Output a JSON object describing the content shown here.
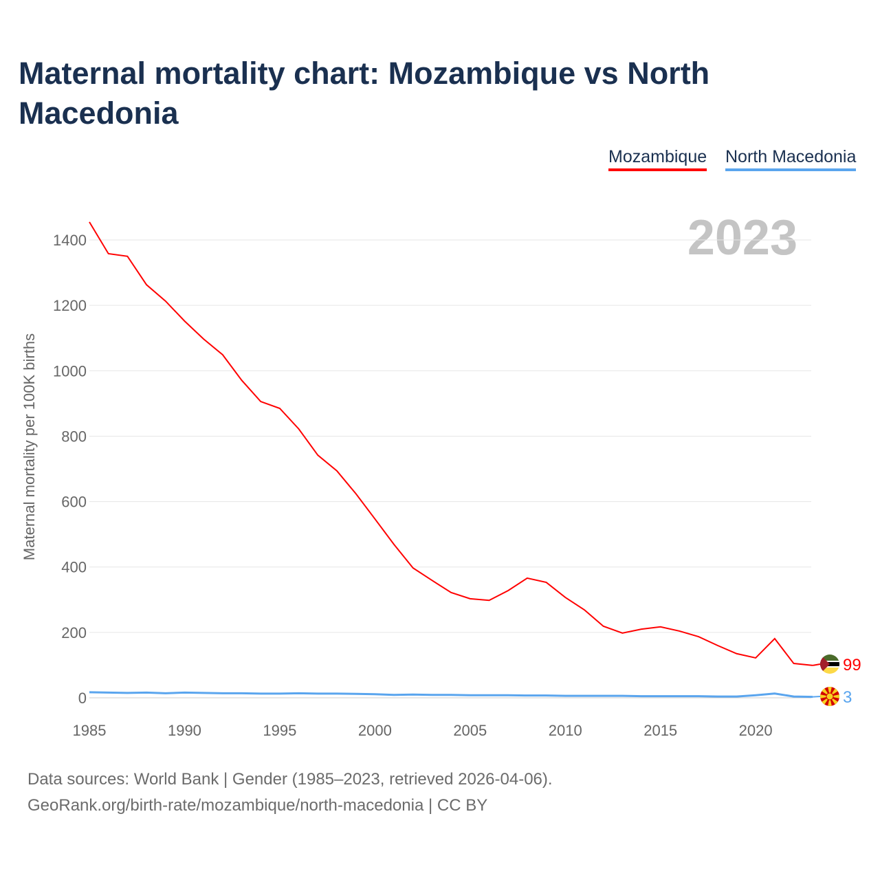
{
  "chart_data": {
    "type": "line",
    "title": "Maternal mortality chart: Mozambique vs North Macedonia",
    "ylabel": "Maternal mortality per 100K births",
    "xlabel": "",
    "year_label": "2023",
    "xlim": [
      1985,
      2023
    ],
    "ylim": [
      0,
      1400
    ],
    "yticks": [
      0,
      200,
      400,
      600,
      800,
      1000,
      1200,
      1400
    ],
    "xticks": [
      1985,
      1990,
      1995,
      2000,
      2005,
      2010,
      2015,
      2020
    ],
    "x": [
      1985,
      1986,
      1987,
      1988,
      1989,
      1990,
      1991,
      1992,
      1993,
      1994,
      1995,
      1996,
      1997,
      1998,
      1999,
      2000,
      2001,
      2002,
      2003,
      2004,
      2005,
      2006,
      2007,
      2008,
      2009,
      2010,
      2011,
      2012,
      2013,
      2014,
      2015,
      2016,
      2017,
      2018,
      2019,
      2020,
      2021,
      2022,
      2023
    ],
    "series": [
      {
        "name": "Mozambique",
        "color": "#ff0000",
        "end_label": "99",
        "values": [
          1455,
          1358,
          1350,
          1263,
          1213,
          1152,
          1097,
          1049,
          971,
          906,
          885,
          822,
          742,
          694,
          624,
          547,
          469,
          397,
          359,
          322,
          303,
          298,
          328,
          366,
          353,
          307,
          269,
          219,
          198,
          210,
          217,
          204,
          187,
          160,
          135,
          122,
          181,
          105,
          99
        ]
      },
      {
        "name": "North Macedonia",
        "color": "#5aa5ee",
        "end_label": "3",
        "values": [
          17,
          16,
          15,
          16,
          14,
          16,
          15,
          14,
          14,
          13,
          13,
          14,
          13,
          13,
          12,
          11,
          9,
          10,
          9,
          9,
          8,
          8,
          8,
          7,
          7,
          6,
          6,
          6,
          6,
          5,
          5,
          5,
          5,
          4,
          4,
          8,
          13,
          4,
          3
        ]
      }
    ],
    "grid": true,
    "legend_position": "top-right"
  },
  "footer": {
    "line1": "Data sources: World Bank | Gender (1985–2023, retrieved 2026-04-06).",
    "line2": "GeoRank.org/birth-rate/mozambique/north-macedonia | CC BY"
  }
}
